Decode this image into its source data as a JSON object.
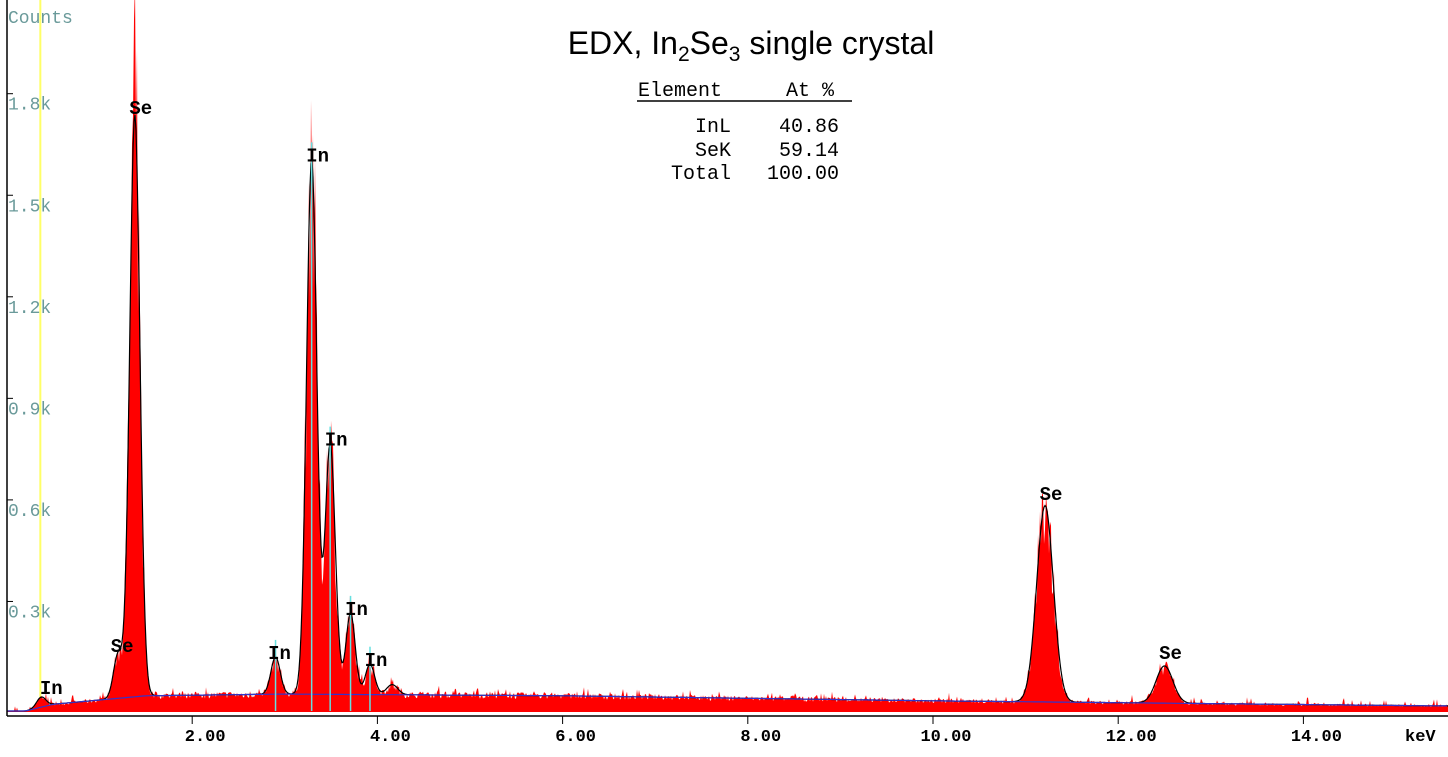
{
  "chart_data": {
    "type": "area",
    "title": {
      "prefix": "EDX, In",
      "sub1": "2",
      "mid": "Se",
      "sub2": "3",
      "suffix": " single crystal"
    },
    "ylabel": "Counts",
    "xlabel": "keV",
    "xlim": [
      0,
      15.5
    ],
    "ylim": [
      0,
      2.1
    ],
    "y_unit": "k counts",
    "x_ticks": [
      "2.00",
      "4.00",
      "6.00",
      "8.00",
      "10.00",
      "12.00",
      "14.00"
    ],
    "x_tick_values": [
      2,
      4,
      6,
      8,
      10,
      12,
      14
    ],
    "y_ticks": [
      "0.3k",
      "0.6k",
      "0.9k",
      "1.2k",
      "1.5k",
      "1.8k"
    ],
    "y_tick_values": [
      0.3,
      0.6,
      0.9,
      1.2,
      1.5,
      1.8
    ],
    "marker_energy_keV": 0.36,
    "peaks": [
      {
        "label": "In",
        "energy": 0.37,
        "counts": 0.03,
        "width": 0.05
      },
      {
        "label": "Se",
        "energy": 1.2,
        "counts": 0.13,
        "width": 0.05
      },
      {
        "label": "Se",
        "energy": 1.38,
        "counts": 1.72,
        "width": 0.055
      },
      {
        "label": "In",
        "energy": 2.9,
        "counts": 0.11,
        "width": 0.05
      },
      {
        "label": "In",
        "energy": 3.29,
        "counts": 1.58,
        "width": 0.055
      },
      {
        "label": "In",
        "energy": 3.49,
        "counts": 0.74,
        "width": 0.055
      },
      {
        "label": "In",
        "energy": 3.71,
        "counts": 0.24,
        "width": 0.05
      },
      {
        "label": "In",
        "energy": 3.92,
        "counts": 0.09,
        "width": 0.05
      },
      {
        "label": "",
        "energy": 4.16,
        "counts": 0.03,
        "width": 0.06
      },
      {
        "label": "Se",
        "energy": 11.21,
        "counts": 0.58,
        "width": 0.09
      },
      {
        "label": "Se",
        "energy": 12.5,
        "counts": 0.11,
        "width": 0.09
      }
    ],
    "line_markers_keV": [
      2.9,
      3.29,
      3.49,
      3.71,
      3.92
    ],
    "background": [
      [
        0.2,
        0.0
      ],
      [
        0.5,
        0.02
      ],
      [
        1.5,
        0.045
      ],
      [
        3.0,
        0.05
      ],
      [
        6.0,
        0.045
      ],
      [
        10.0,
        0.03
      ],
      [
        15.5,
        0.015
      ]
    ],
    "colors": {
      "fill": "#ff0000",
      "fit": "#000000",
      "background": "#3333cc",
      "marker": "#ffff66",
      "lines": "#66e0e0",
      "axis_labels": "#6a9a9a"
    }
  },
  "results_table": {
    "headers": [
      "Element",
      "At %"
    ],
    "rows": [
      {
        "element": "InL",
        "value": "40.86"
      },
      {
        "element": "SeK",
        "value": "59.14"
      },
      {
        "element": "Total",
        "value": "100.00"
      }
    ]
  }
}
